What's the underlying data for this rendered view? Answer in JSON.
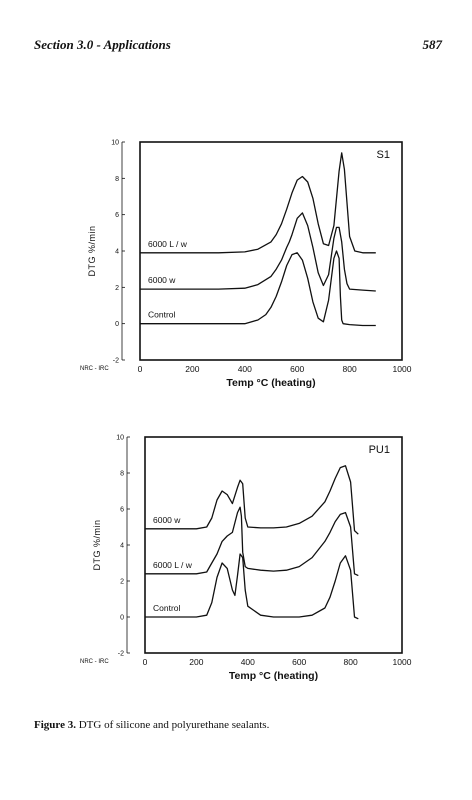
{
  "header": {
    "section": "Section 3.0 - Applications",
    "page_number": "587"
  },
  "caption": {
    "label": "Figure 3.",
    "text": " DTG of silicone and polyurethane sealants."
  },
  "chart_data": [
    {
      "type": "line",
      "panel_label": "S1",
      "watermark": "NRC - IRC",
      "xlabel": "Temp °C  (heating)",
      "ylabel": "DTG    %/min",
      "xlim": [
        0,
        1000
      ],
      "ylim": [
        -2,
        10
      ],
      "xticks": [
        0,
        200,
        400,
        600,
        800,
        1000
      ],
      "yticks": [
        -2,
        0,
        2,
        4,
        6,
        8,
        10
      ],
      "series": [
        {
          "name": "6000 L / w",
          "x": [
            0,
            100,
            200,
            300,
            400,
            450,
            500,
            520,
            540,
            560,
            580,
            600,
            620,
            640,
            660,
            680,
            700,
            720,
            740,
            760,
            770,
            780,
            800,
            820,
            850,
            900
          ],
          "y": [
            3.9,
            3.9,
            3.9,
            3.9,
            3.95,
            4.1,
            4.5,
            4.9,
            5.5,
            6.3,
            7.2,
            7.9,
            8.1,
            7.8,
            6.9,
            5.5,
            4.4,
            4.3,
            5.4,
            8.4,
            9.4,
            8.5,
            4.8,
            4.0,
            3.9,
            3.9
          ]
        },
        {
          "name": "6000 w",
          "x": [
            0,
            100,
            200,
            300,
            400,
            450,
            500,
            520,
            540,
            560,
            570,
            580,
            600,
            620,
            640,
            660,
            680,
            700,
            720,
            740,
            750,
            760,
            770,
            780,
            790,
            800,
            850,
            900
          ],
          "y": [
            1.9,
            1.9,
            1.9,
            1.9,
            1.95,
            2.15,
            2.6,
            3.0,
            3.5,
            4.2,
            4.5,
            4.9,
            5.8,
            6.1,
            5.4,
            4.2,
            2.8,
            2.1,
            2.7,
            4.7,
            5.3,
            5.3,
            4.5,
            3.0,
            2.2,
            1.9,
            1.85,
            1.8
          ]
        },
        {
          "name": "Control",
          "x": [
            0,
            100,
            200,
            300,
            400,
            450,
            480,
            500,
            520,
            540,
            560,
            580,
            600,
            620,
            640,
            660,
            680,
            700,
            720,
            740,
            750,
            760,
            765,
            770,
            775,
            800,
            850,
            900
          ],
          "y": [
            0,
            0,
            0,
            0,
            0,
            0.2,
            0.5,
            0.9,
            1.5,
            2.3,
            3.2,
            3.8,
            3.9,
            3.5,
            2.5,
            1.2,
            0.3,
            0.1,
            1.3,
            3.6,
            4.0,
            3.6,
            1.5,
            0.2,
            0,
            -0.05,
            -0.1,
            -0.1
          ]
        }
      ]
    },
    {
      "type": "line",
      "panel_label": "PU1",
      "watermark": "NRC - IRC",
      "xlabel": "Temp °C  (heating)",
      "ylabel": "DTG    %/min",
      "xlim": [
        0,
        1000
      ],
      "ylim": [
        -2,
        10
      ],
      "xticks": [
        0,
        200,
        400,
        600,
        800,
        1000
      ],
      "yticks": [
        -2,
        0,
        2,
        4,
        6,
        8,
        10
      ],
      "series": [
        {
          "name": "6000 w",
          "x": [
            0,
            100,
            200,
            240,
            260,
            280,
            300,
            320,
            340,
            360,
            370,
            380,
            390,
            400,
            450,
            500,
            550,
            600,
            650,
            700,
            720,
            740,
            760,
            780,
            800,
            815,
            830
          ],
          "y": [
            4.9,
            4.9,
            4.9,
            5.0,
            5.5,
            6.5,
            7.0,
            6.8,
            6.3,
            7.2,
            7.6,
            7.4,
            5.5,
            5.0,
            4.95,
            4.95,
            5.0,
            5.2,
            5.6,
            6.4,
            7.0,
            7.7,
            8.3,
            8.4,
            7.5,
            4.8,
            4.6
          ]
        },
        {
          "name": "6000 L / w",
          "x": [
            0,
            100,
            200,
            240,
            260,
            280,
            300,
            320,
            340,
            360,
            370,
            375,
            380,
            390,
            400,
            450,
            500,
            550,
            600,
            650,
            700,
            720,
            740,
            760,
            780,
            800,
            815,
            830
          ],
          "y": [
            2.4,
            2.4,
            2.4,
            2.5,
            3.0,
            3.5,
            4.2,
            4.5,
            4.7,
            5.8,
            6.1,
            5.6,
            3.6,
            2.8,
            2.7,
            2.6,
            2.55,
            2.6,
            2.8,
            3.3,
            4.2,
            4.7,
            5.3,
            5.7,
            5.8,
            5.0,
            2.4,
            2.3
          ]
        },
        {
          "name": "Control",
          "x": [
            0,
            100,
            200,
            240,
            260,
            280,
            300,
            320,
            340,
            350,
            360,
            370,
            380,
            390,
            400,
            450,
            500,
            550,
            600,
            650,
            700,
            720,
            740,
            760,
            780,
            800,
            815,
            830
          ],
          "y": [
            0,
            0,
            0,
            0.1,
            0.8,
            2.2,
            3.0,
            2.7,
            1.5,
            1.2,
            2.3,
            3.5,
            3.3,
            1.5,
            0.6,
            0.1,
            0,
            0,
            0,
            0.1,
            0.5,
            1.1,
            2.0,
            3.0,
            3.4,
            2.6,
            0,
            -0.1
          ]
        }
      ]
    }
  ]
}
